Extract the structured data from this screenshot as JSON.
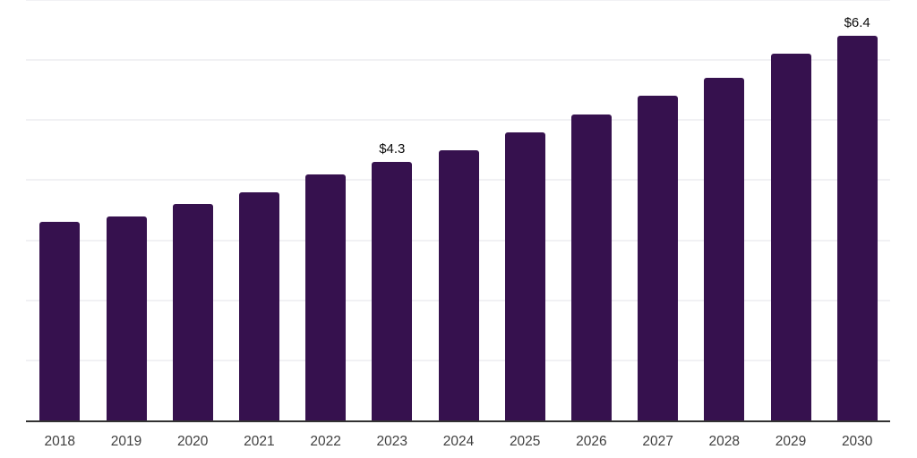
{
  "chart_data": {
    "type": "bar",
    "title": "",
    "xlabel": "",
    "ylabel": "",
    "categories": [
      "2018",
      "2019",
      "2020",
      "2021",
      "2022",
      "2023",
      "2024",
      "2025",
      "2026",
      "2027",
      "2028",
      "2029",
      "2030"
    ],
    "values": [
      3.3,
      3.4,
      3.6,
      3.8,
      4.1,
      4.3,
      4.5,
      4.8,
      5.1,
      5.4,
      5.7,
      6.1,
      6.4
    ],
    "data_labels": [
      {
        "category": "2023",
        "text": "$4.3"
      },
      {
        "category": "2030",
        "text": "$6.4"
      }
    ],
    "ylim": [
      0,
      7
    ],
    "grid": "horizontal",
    "gridline_interval": 1,
    "y_tick_labels_shown": false,
    "legend_position": "none",
    "colors": {
      "bar": "#36114E",
      "axis_line": "#323232",
      "gridline": "#F1F1F4",
      "data_label": "#0B0B0B",
      "tick_label": "#3F3F3F",
      "background": "#FFFFFF"
    }
  }
}
